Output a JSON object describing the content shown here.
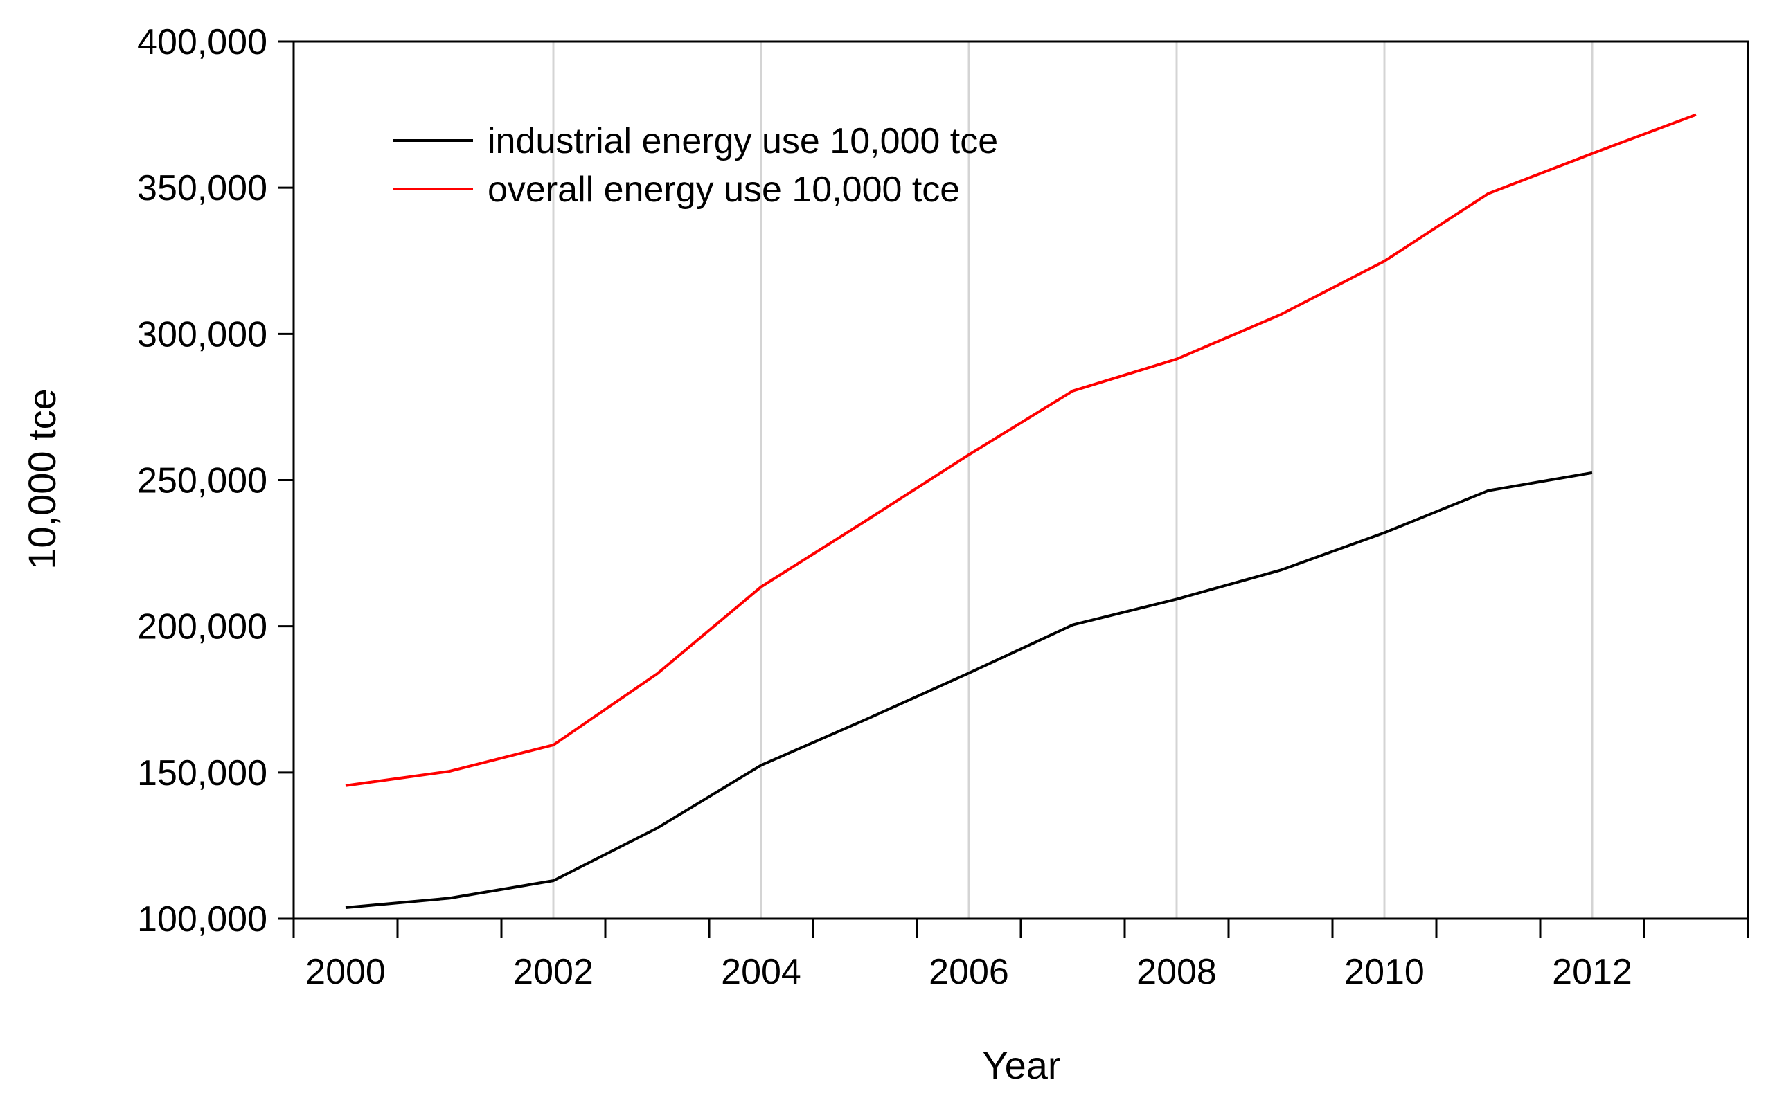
{
  "chart_data": {
    "type": "line",
    "title": "",
    "xlabel": "Year",
    "ylabel": "10,000 tce",
    "x": [
      2000,
      2001,
      2002,
      2003,
      2004,
      2005,
      2006,
      2007,
      2008,
      2009,
      2010,
      2011,
      2012,
      2013
    ],
    "xlim": [
      1999.5,
      2013.5
    ],
    "ylim": [
      100000,
      400000
    ],
    "x_ticks": [
      2000,
      2001,
      2002,
      2003,
      2004,
      2005,
      2006,
      2007,
      2008,
      2009,
      2010,
      2011,
      2012,
      2013
    ],
    "x_tick_labels": [
      "2000",
      "",
      "2002",
      "",
      "2004",
      "",
      "2006",
      "",
      "2008",
      "",
      "2010",
      "",
      "2012",
      ""
    ],
    "y_ticks": [
      100000,
      150000,
      200000,
      250000,
      300000,
      350000,
      400000
    ],
    "y_tick_labels": [
      "100,000",
      "150,000",
      "200,000",
      "250,000",
      "300,000",
      "350,000",
      "400,000"
    ],
    "grid": "vertical",
    "legend_position": "top-left",
    "series": [
      {
        "name": "industrial energy use 10,000 tce",
        "color": "#000000",
        "values": [
          103800,
          107000,
          113000,
          131000,
          152500,
          168000,
          184000,
          200500,
          209300,
          219200,
          232000,
          246400,
          252500,
          null
        ]
      },
      {
        "name": "overall energy use 10,000 tce",
        "color": "#ff0000",
        "values": [
          145500,
          150400,
          159400,
          183800,
          213500,
          235900,
          258700,
          280500,
          291400,
          306600,
          324900,
          348000,
          361700,
          375000
        ]
      }
    ]
  }
}
